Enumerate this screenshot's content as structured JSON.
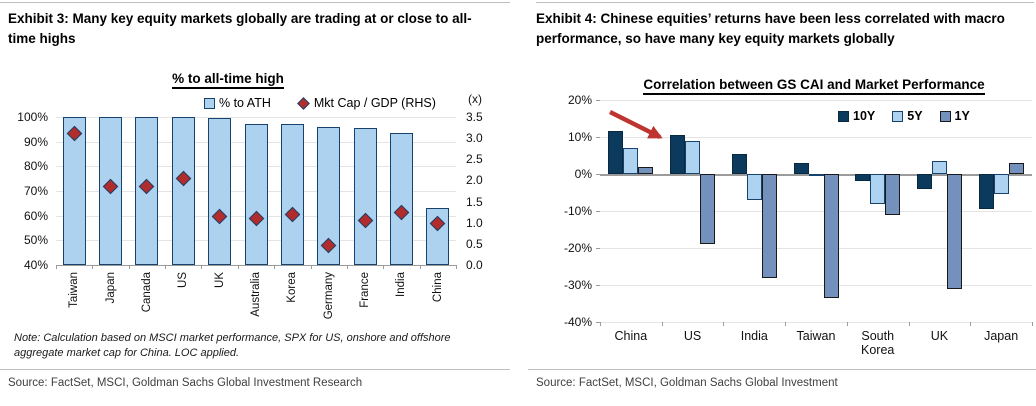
{
  "page": {
    "left_panel": {
      "exhibit_title": "Exhibit 3: Many key equity markets globally are trading at or close to all-time highs",
      "note": "Note: Calculation based on MSCI market performance, SPX for US, onshore and offshore aggregate market cap for China. LOC applied.",
      "source": "Source: FactSet, MSCI, Goldman Sachs Global Investment Research"
    },
    "right_panel": {
      "exhibit_title": "Exhibit 4: Chinese equities’ returns have been less correlated with macro performance, so have many key equity markets globally",
      "source": "Source: FactSet, MSCI, Goldman Sachs Global Investment"
    }
  },
  "chart_data": [
    {
      "type": "bar",
      "title": "% to all-time high",
      "categories": [
        "Taiwan",
        "Japan",
        "Canada",
        "US",
        "UK",
        "Australia",
        "Korea",
        "Germany",
        "France",
        "India",
        "China"
      ],
      "series": [
        {
          "name": "% to ATH",
          "render": "bar",
          "axis": "left",
          "marker": "square",
          "color": "#ADD2EF",
          "border": "#17426B",
          "values": [
            100,
            100,
            100,
            100,
            99.5,
            97,
            97,
            96,
            95.5,
            93.5,
            63
          ]
        },
        {
          "name": "Mkt Cap / GDP (RHS)",
          "render": "scatter",
          "axis": "right",
          "marker": "diamond",
          "color": "#B22C2C",
          "border": "#17426B",
          "values": [
            3.1,
            1.85,
            1.85,
            2.05,
            1.15,
            1.1,
            1.2,
            0.45,
            1.05,
            1.25,
            0.97
          ]
        }
      ],
      "left_axis": {
        "min": 40,
        "max": 100,
        "step": 10,
        "ticks": [
          "100%",
          "90%",
          "80%",
          "70%",
          "60%",
          "50%",
          "40%"
        ]
      },
      "right_axis": {
        "min": 0,
        "max": 3.5,
        "step": 0.5,
        "unit": "(x)",
        "ticks": [
          "3.5",
          "3.0",
          "2.5",
          "2.0",
          "1.5",
          "1.0",
          "0.5",
          "0.0"
        ]
      },
      "legend_position": "top",
      "grid": true
    },
    {
      "type": "bar",
      "title": "Correlation between GS CAI and Market Performance",
      "categories": [
        "China",
        "US",
        "India",
        "Taiwan",
        "South Korea",
        "UK",
        "Japan"
      ],
      "series": [
        {
          "name": "10Y",
          "color": "#0B3A5D",
          "border": "#08293F",
          "values": [
            11.5,
            10.5,
            5.5,
            3,
            -2,
            -4,
            -9.5
          ]
        },
        {
          "name": "5Y",
          "color": "#AED3F0",
          "border": "#17426B",
          "values": [
            7,
            9,
            -7,
            -0.5,
            -8,
            3.5,
            -5.5
          ]
        },
        {
          "name": "1Y",
          "color": "#7491BE",
          "border": "#1A1A1A",
          "values": [
            2,
            -19,
            -28,
            -33.5,
            -11,
            -31,
            3
          ]
        }
      ],
      "y_axis": {
        "min": -40,
        "max": 20,
        "step": 10,
        "ticks": [
          "20%",
          "10%",
          "0%",
          "-10%",
          "-20%",
          "-30%",
          "-40%"
        ]
      },
      "legend_position": "top-right",
      "grid": true,
      "annotation": {
        "type": "arrow",
        "color": "#BE3430",
        "desc": "red arrow pointing down-right from China bars toward US bars"
      }
    }
  ],
  "colors": {
    "bar_fill_light_blue": "#ADD2EF",
    "bar_border_navy": "#17426B",
    "diamond_red": "#B22C2C",
    "navy_10y": "#0B3A5D",
    "slate_1y": "#7491BE",
    "arrow_red": "#BE3430",
    "gridline": "#E4E4E4",
    "axis_gray": "#9B9B9B",
    "rule_gray": "#BFBFBF",
    "source_text": "#3F3F3F"
  }
}
